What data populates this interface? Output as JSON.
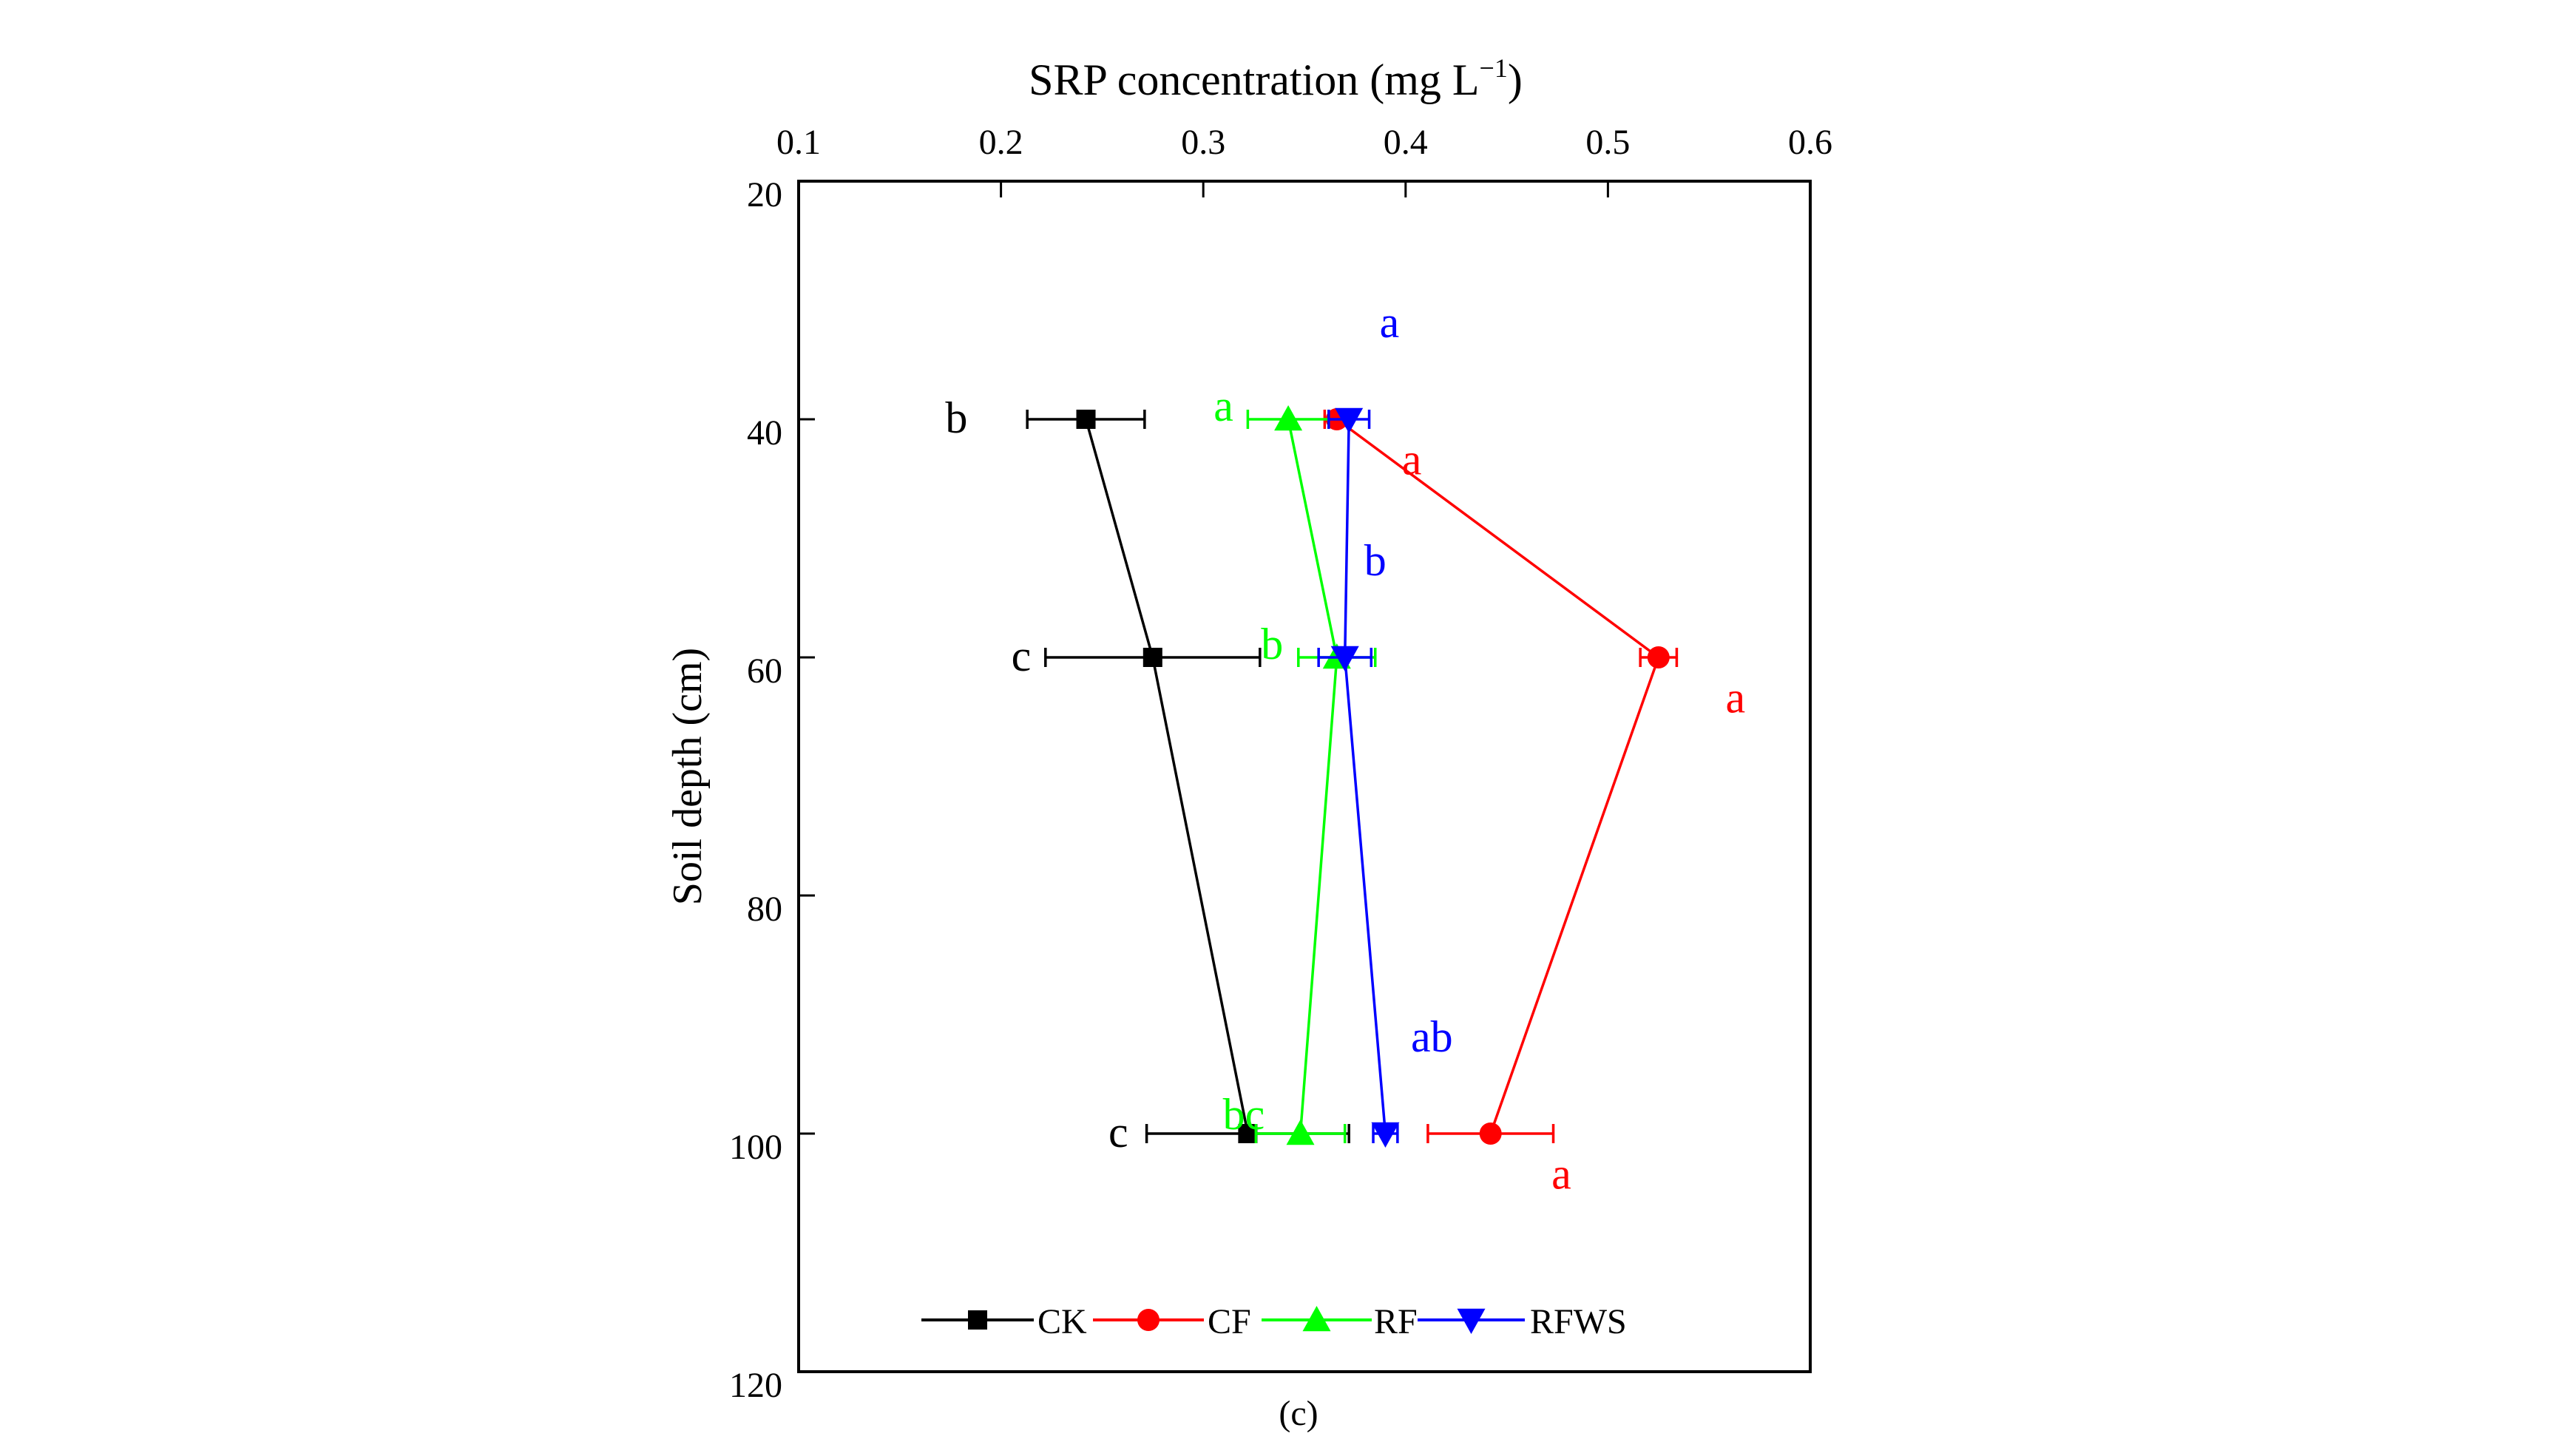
{
  "chart_data": {
    "type": "line",
    "title": "SRP concentration (mg L",
    "title_superscript": "−1",
    "title_close": ")",
    "xlabel": "SRP concentration (mg L−1)",
    "ylabel": "Soil depth (cm)",
    "caption": "(c)",
    "xlim": [
      0.1,
      0.6
    ],
    "ylim": [
      20,
      120
    ],
    "y_inverted": true,
    "x_axis_position": "top",
    "x_ticks": [
      0.1,
      0.2,
      0.3,
      0.4,
      0.5,
      0.6
    ],
    "x_tick_labels": [
      "0.1",
      "0.2",
      "0.3",
      "0.4",
      "0.5",
      "0.6"
    ],
    "y_ticks": [
      20,
      40,
      60,
      80,
      100,
      120
    ],
    "y_tick_labels": [
      "20",
      "40",
      "60",
      "80",
      "100",
      "120"
    ],
    "grid": false,
    "legend_position": "bottom",
    "series": [
      {
        "name": "CK",
        "color": "#000000",
        "marker": "square",
        "points": [
          {
            "depth": 40,
            "value": 0.242,
            "error": 0.029,
            "letter": "b",
            "letter_x": 0.178,
            "letter_y": 40
          },
          {
            "depth": 60,
            "value": 0.275,
            "error": 0.053,
            "letter": "c",
            "letter_x": 0.21,
            "letter_y": 60
          },
          {
            "depth": 100,
            "value": 0.322,
            "error": 0.05,
            "letter": "c",
            "letter_x": 0.258,
            "letter_y": 100
          }
        ]
      },
      {
        "name": "CF",
        "color": "#ff0000",
        "marker": "circle",
        "points": [
          {
            "depth": 40,
            "value": 0.366,
            "error": 0.006,
            "letter": "a",
            "letter_x": 0.403,
            "letter_y": 43.5
          },
          {
            "depth": 60,
            "value": 0.525,
            "error": 0.009,
            "letter": "a",
            "letter_x": 0.563,
            "letter_y": 63.5
          },
          {
            "depth": 100,
            "value": 0.442,
            "error": 0.031,
            "letter": "a",
            "letter_x": 0.477,
            "letter_y": 103.5
          }
        ]
      },
      {
        "name": "RF",
        "color": "#00ff00",
        "marker": "triangle-up",
        "points": [
          {
            "depth": 40,
            "value": 0.342,
            "error": 0.02,
            "letter": "a",
            "letter_x": 0.31,
            "letter_y": 39
          },
          {
            "depth": 60,
            "value": 0.366,
            "error": 0.019,
            "letter": "b",
            "letter_x": 0.334,
            "letter_y": 59
          },
          {
            "depth": 100,
            "value": 0.348,
            "error": 0.022,
            "letter": "bc",
            "letter_x": 0.32,
            "letter_y": 98.5
          }
        ]
      },
      {
        "name": "RFWS",
        "color": "#0000ff",
        "marker": "triangle-down",
        "points": [
          {
            "depth": 40,
            "value": 0.372,
            "error": 0.01,
            "letter": "a",
            "letter_x": 0.392,
            "letter_y": 32
          },
          {
            "depth": 60,
            "value": 0.37,
            "error": 0.013,
            "letter": "b",
            "letter_x": 0.385,
            "letter_y": 52
          },
          {
            "depth": 100,
            "value": 0.39,
            "error": 0.006,
            "letter": "ab",
            "letter_x": 0.413,
            "letter_y": 92
          }
        ]
      }
    ]
  }
}
